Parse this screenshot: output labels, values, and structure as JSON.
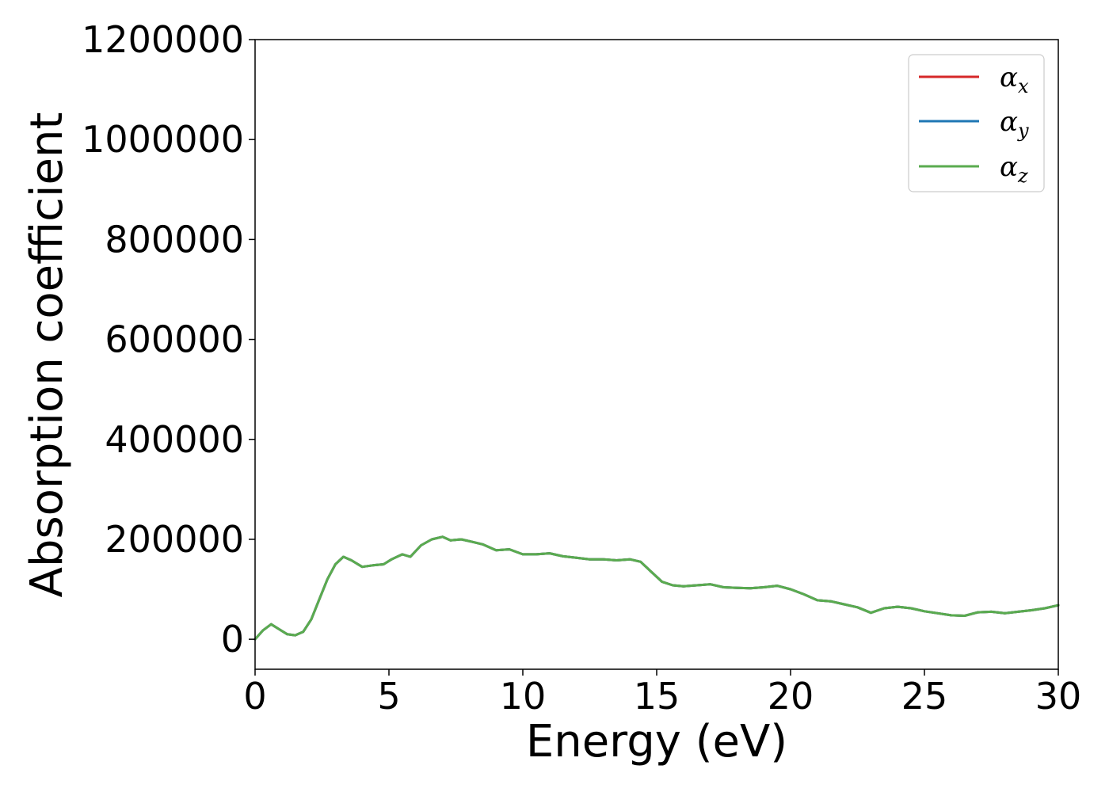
{
  "chart_data": {
    "type": "line",
    "title": "",
    "xlabel": "Energy (eV)",
    "ylabel": "Absorption coefficient",
    "xlim": [
      0,
      30
    ],
    "ylim": [
      -60000,
      1200000
    ],
    "xticks": [
      "0",
      "5",
      "10",
      "15",
      "20",
      "25",
      "30"
    ],
    "xtick_values": [
      0,
      5,
      10,
      15,
      20,
      25,
      30
    ],
    "yticks": [
      "0",
      "200000",
      "400000",
      "600000",
      "800000",
      "1000000",
      "1200000"
    ],
    "ytick_values": [
      0,
      200000,
      400000,
      600000,
      800000,
      1000000,
      1200000
    ],
    "grid": false,
    "legend_position": "top-right",
    "series": [
      {
        "name": "α_x",
        "label_main": "α",
        "label_sub": "x",
        "color": "#d62728",
        "x": [
          0,
          0.3,
          0.6,
          0.9,
          1.2,
          1.5,
          1.8,
          2.1,
          2.4,
          2.7,
          3.0,
          3.3,
          3.6,
          4.0,
          4.4,
          4.8,
          5.1,
          5.5,
          5.8,
          6.2,
          6.6,
          7.0,
          7.3,
          7.7,
          8.1,
          8.5,
          9.0,
          9.5,
          10.0,
          10.5,
          11.0,
          11.5,
          12.0,
          12.5,
          13.0,
          13.5,
          14.0,
          14.4,
          14.8,
          15.2,
          15.6,
          16.0,
          16.5,
          17.0,
          17.5,
          18.0,
          18.5,
          19.0,
          19.5,
          20.0,
          20.5,
          21.0,
          21.5,
          22.0,
          22.5,
          23.0,
          23.5,
          24.0,
          24.5,
          25.0,
          25.5,
          26.0,
          26.5,
          27.0,
          27.5,
          28.0,
          28.5,
          29.0,
          29.5,
          30.0
        ],
        "y": [
          0,
          18000,
          30000,
          20000,
          10000,
          8000,
          15000,
          40000,
          80000,
          120000,
          150000,
          165000,
          158000,
          145000,
          148000,
          150000,
          160000,
          170000,
          165000,
          188000,
          200000,
          205000,
          198000,
          200000,
          195000,
          190000,
          178000,
          180000,
          170000,
          170000,
          172000,
          166000,
          163000,
          160000,
          160000,
          158000,
          160000,
          155000,
          135000,
          115000,
          108000,
          106000,
          108000,
          110000,
          104000,
          103000,
          102000,
          104000,
          107000,
          100000,
          90000,
          78000,
          76000,
          70000,
          64000,
          53000,
          62000,
          65000,
          62000,
          56000,
          52000,
          48000,
          47000,
          54000,
          55000,
          52000,
          55000,
          58000,
          62000,
          68000
        ]
      },
      {
        "name": "α_y",
        "label_main": "α",
        "label_sub": "y",
        "color": "#1f77b4",
        "x": [
          0,
          0.3,
          0.6,
          0.9,
          1.2,
          1.5,
          1.8,
          2.1,
          2.4,
          2.7,
          3.0,
          3.3,
          3.6,
          4.0,
          4.4,
          4.8,
          5.1,
          5.5,
          5.8,
          6.2,
          6.6,
          7.0,
          7.3,
          7.7,
          8.1,
          8.5,
          9.0,
          9.5,
          10.0,
          10.5,
          11.0,
          11.5,
          12.0,
          12.5,
          13.0,
          13.5,
          14.0,
          14.4,
          14.8,
          15.2,
          15.6,
          16.0,
          16.5,
          17.0,
          17.5,
          18.0,
          18.5,
          19.0,
          19.5,
          20.0,
          20.5,
          21.0,
          21.5,
          22.0,
          22.5,
          23.0,
          23.5,
          24.0,
          24.5,
          25.0,
          25.5,
          26.0,
          26.5,
          27.0,
          27.5,
          28.0,
          28.5,
          29.0,
          29.5,
          30.0
        ],
        "y": [
          0,
          18000,
          30000,
          20000,
          10000,
          8000,
          15000,
          40000,
          80000,
          120000,
          150000,
          165000,
          158000,
          145000,
          148000,
          150000,
          160000,
          170000,
          165000,
          188000,
          200000,
          205000,
          198000,
          200000,
          195000,
          190000,
          178000,
          180000,
          170000,
          170000,
          172000,
          166000,
          163000,
          160000,
          160000,
          158000,
          160000,
          155000,
          135000,
          115000,
          108000,
          106000,
          108000,
          110000,
          104000,
          103000,
          102000,
          104000,
          107000,
          100000,
          90000,
          78000,
          76000,
          70000,
          64000,
          53000,
          62000,
          65000,
          62000,
          56000,
          52000,
          48000,
          47000,
          54000,
          55000,
          52000,
          55000,
          58000,
          62000,
          68000
        ]
      },
      {
        "name": "α_z",
        "label_main": "α",
        "label_sub": "z",
        "color": "#5aab4f",
        "x": [
          0,
          0.3,
          0.6,
          0.9,
          1.2,
          1.5,
          1.8,
          2.1,
          2.4,
          2.7,
          3.0,
          3.3,
          3.6,
          4.0,
          4.4,
          4.8,
          5.1,
          5.5,
          5.8,
          6.2,
          6.6,
          7.0,
          7.3,
          7.7,
          8.1,
          8.5,
          9.0,
          9.5,
          10.0,
          10.5,
          11.0,
          11.5,
          12.0,
          12.5,
          13.0,
          13.5,
          14.0,
          14.4,
          14.8,
          15.2,
          15.6,
          16.0,
          16.5,
          17.0,
          17.5,
          18.0,
          18.5,
          19.0,
          19.5,
          20.0,
          20.5,
          21.0,
          21.5,
          22.0,
          22.5,
          23.0,
          23.5,
          24.0,
          24.5,
          25.0,
          25.5,
          26.0,
          26.5,
          27.0,
          27.5,
          28.0,
          28.5,
          29.0,
          29.5,
          30.0
        ],
        "y": [
          0,
          18000,
          30000,
          20000,
          10000,
          8000,
          15000,
          40000,
          80000,
          120000,
          150000,
          165000,
          158000,
          145000,
          148000,
          150000,
          160000,
          170000,
          165000,
          188000,
          200000,
          205000,
          198000,
          200000,
          195000,
          190000,
          178000,
          180000,
          170000,
          170000,
          172000,
          166000,
          163000,
          160000,
          160000,
          158000,
          160000,
          155000,
          135000,
          115000,
          108000,
          106000,
          108000,
          110000,
          104000,
          103000,
          102000,
          104000,
          107000,
          100000,
          90000,
          78000,
          76000,
          70000,
          64000,
          53000,
          62000,
          65000,
          62000,
          56000,
          52000,
          48000,
          47000,
          54000,
          55000,
          52000,
          55000,
          58000,
          62000,
          68000
        ]
      }
    ]
  }
}
